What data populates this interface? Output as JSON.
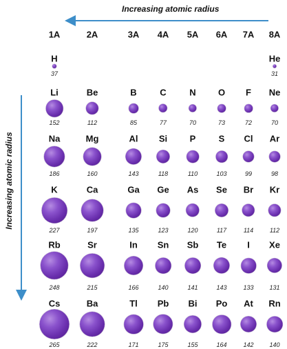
{
  "labels": {
    "horizontal_arrow": "Increasing atomic radius",
    "vertical_arrow": "Increasing atomic radius"
  },
  "colors": {
    "arrow": "#3d8ec9",
    "sphere": "#7a3fbf"
  },
  "groups": [
    "1A",
    "2A",
    "3A",
    "4A",
    "5A",
    "6A",
    "7A",
    "8A"
  ],
  "periods": [
    {
      "elements": [
        {
          "symbol": "H",
          "radius": 37,
          "group": 0
        },
        {
          "symbol": "He",
          "radius": 31,
          "group": 7
        }
      ]
    },
    {
      "elements": [
        {
          "symbol": "Li",
          "radius": 152,
          "group": 0
        },
        {
          "symbol": "Be",
          "radius": 112,
          "group": 1
        },
        {
          "symbol": "B",
          "radius": 85,
          "group": 2
        },
        {
          "symbol": "C",
          "radius": 77,
          "group": 3
        },
        {
          "symbol": "N",
          "radius": 70,
          "group": 4
        },
        {
          "symbol": "O",
          "radius": 73,
          "group": 5
        },
        {
          "symbol": "F",
          "radius": 72,
          "group": 6
        },
        {
          "symbol": "Ne",
          "radius": 70,
          "group": 7
        }
      ]
    },
    {
      "elements": [
        {
          "symbol": "Na",
          "radius": 186,
          "group": 0
        },
        {
          "symbol": "Mg",
          "radius": 160,
          "group": 1
        },
        {
          "symbol": "Al",
          "radius": 143,
          "group": 2
        },
        {
          "symbol": "Si",
          "radius": 118,
          "group": 3
        },
        {
          "symbol": "P",
          "radius": 110,
          "group": 4
        },
        {
          "symbol": "S",
          "radius": 103,
          "group": 5
        },
        {
          "symbol": "Cl",
          "radius": 99,
          "group": 6
        },
        {
          "symbol": "Ar",
          "radius": 98,
          "group": 7
        }
      ]
    },
    {
      "elements": [
        {
          "symbol": "K",
          "radius": 227,
          "group": 0
        },
        {
          "symbol": "Ca",
          "radius": 197,
          "group": 1
        },
        {
          "symbol": "Ga",
          "radius": 135,
          "group": 2
        },
        {
          "symbol": "Ge",
          "radius": 123,
          "group": 3
        },
        {
          "symbol": "As",
          "radius": 120,
          "group": 4
        },
        {
          "symbol": "Se",
          "radius": 117,
          "group": 5
        },
        {
          "symbol": "Br",
          "radius": 114,
          "group": 6
        },
        {
          "symbol": "Kr",
          "radius": 112,
          "group": 7
        }
      ]
    },
    {
      "elements": [
        {
          "symbol": "Rb",
          "radius": 248,
          "group": 0
        },
        {
          "symbol": "Sr",
          "radius": 215,
          "group": 1
        },
        {
          "symbol": "In",
          "radius": 166,
          "group": 2
        },
        {
          "symbol": "Sn",
          "radius": 140,
          "group": 3
        },
        {
          "symbol": "Sb",
          "radius": 141,
          "group": 4
        },
        {
          "symbol": "Te",
          "radius": 143,
          "group": 5
        },
        {
          "symbol": "I",
          "radius": 133,
          "group": 6
        },
        {
          "symbol": "Xe",
          "radius": 131,
          "group": 7
        }
      ]
    },
    {
      "elements": [
        {
          "symbol": "Cs",
          "radius": 265,
          "group": 0
        },
        {
          "symbol": "Ba",
          "radius": 222,
          "group": 1
        },
        {
          "symbol": "Tl",
          "radius": 171,
          "group": 2
        },
        {
          "symbol": "Pb",
          "radius": 175,
          "group": 3
        },
        {
          "symbol": "Bi",
          "radius": 155,
          "group": 4
        },
        {
          "symbol": "Po",
          "radius": 164,
          "group": 5
        },
        {
          "symbol": "At",
          "radius": 142,
          "group": 6
        },
        {
          "symbol": "Rn",
          "radius": 140,
          "group": 7
        }
      ]
    }
  ]
}
